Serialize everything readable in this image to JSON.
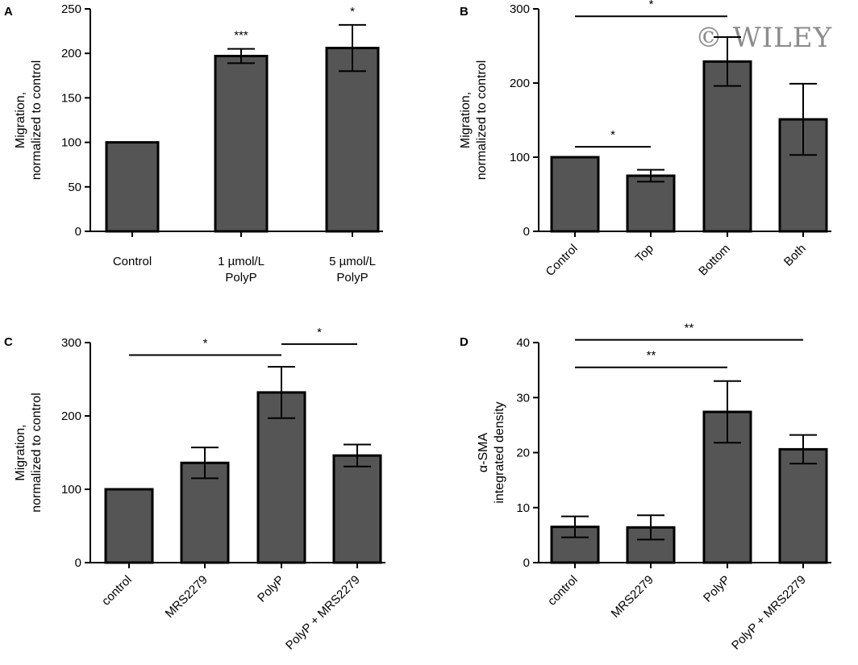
{
  "watermark": "© WILEY",
  "chart_data": [
    {
      "panel": "A",
      "type": "bar",
      "categories": [
        [
          "Control"
        ],
        [
          "1 µmol/L",
          "PolyP"
        ],
        [
          "5 µmol/L",
          "PolyP"
        ]
      ],
      "values": [
        100,
        197,
        206
      ],
      "errors": [
        0,
        8,
        26
      ],
      "ylabel": [
        "Migration,",
        "normalized to control"
      ],
      "ylim": [
        0,
        250
      ],
      "yticks": [
        0,
        50,
        100,
        150,
        200,
        250
      ],
      "rotated_labels": false,
      "bar_markers": [
        {
          "index": 1,
          "text": "***"
        },
        {
          "index": 2,
          "text": "*"
        }
      ],
      "brackets": []
    },
    {
      "panel": "B",
      "type": "bar",
      "categories": [
        [
          "Control"
        ],
        [
          "Top"
        ],
        [
          "Bottom"
        ],
        [
          "Both"
        ]
      ],
      "values": [
        100,
        75,
        229,
        151
      ],
      "errors": [
        0,
        8,
        33,
        48
      ],
      "ylabel": [
        "Migration,",
        "normalized to control"
      ],
      "ylim": [
        0,
        300
      ],
      "yticks": [
        0,
        100,
        200,
        300
      ],
      "rotated_labels": true,
      "bar_markers": [],
      "brackets": [
        {
          "from": 0,
          "to": 2,
          "y": 290,
          "text": "*"
        },
        {
          "from": 0,
          "to": 1,
          "y": 114,
          "text": "*"
        }
      ]
    },
    {
      "panel": "C",
      "type": "bar",
      "categories": [
        [
          "control"
        ],
        [
          "MRS2279"
        ],
        [
          "PolyP"
        ],
        [
          "PolyP + MRS2279"
        ]
      ],
      "values": [
        100,
        136,
        232,
        146
      ],
      "errors": [
        0,
        21,
        35,
        15
      ],
      "ylabel": [
        "Migration,",
        "normalized to control"
      ],
      "ylim": [
        0,
        300
      ],
      "yticks": [
        0,
        100,
        200,
        300
      ],
      "rotated_labels": true,
      "bar_markers": [],
      "brackets": [
        {
          "from": 0,
          "to": 2,
          "y": 283,
          "text": "*"
        },
        {
          "from": 2,
          "to": 3,
          "y": 298,
          "text": "*"
        }
      ]
    },
    {
      "panel": "D",
      "type": "bar",
      "categories": [
        [
          "control"
        ],
        [
          "MRS2279"
        ],
        [
          "PolyP"
        ],
        [
          "PolyP + MRS2279"
        ]
      ],
      "values": [
        6.5,
        6.4,
        27.4,
        20.6
      ],
      "errors": [
        1.9,
        2.2,
        5.6,
        2.6
      ],
      "ylabel": [
        "α-SMA",
        "integrated density"
      ],
      "ylim": [
        0,
        40
      ],
      "yticks": [
        0,
        10,
        20,
        30,
        40
      ],
      "rotated_labels": true,
      "bar_markers": [],
      "brackets": [
        {
          "from": 0,
          "to": 3,
          "y": 40.5,
          "text": "**"
        },
        {
          "from": 0,
          "to": 2,
          "y": 35.5,
          "text": "**"
        }
      ]
    }
  ]
}
